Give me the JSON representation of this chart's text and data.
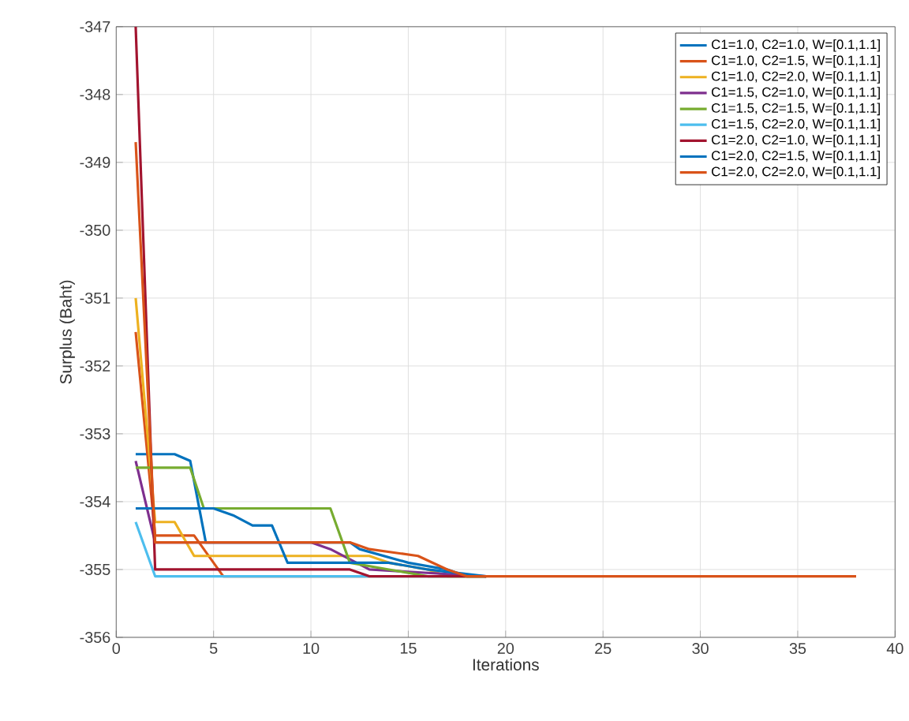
{
  "chart_data": {
    "type": "line",
    "xlabel": "Iterations",
    "ylabel": "Surplus (Baht)",
    "xlim": [
      0,
      40
    ],
    "xticks": [
      0,
      5,
      10,
      15,
      20,
      25,
      30,
      35,
      40
    ],
    "ylim": [
      -356,
      -347
    ],
    "yticks": [
      -356,
      -355,
      -354,
      -353,
      -352,
      -351,
      -350,
      -349,
      -348,
      -347
    ],
    "grid": true,
    "legend": "top right",
    "series": [
      {
        "name": "C1=1.0, C2=1.0, W=[0.1,1.1]",
        "color": "#0072bd",
        "x": [
          1,
          3,
          3.8,
          4.6,
          12,
          12.5,
          15,
          17,
          18,
          19
        ],
        "values": [
          -353.3,
          -353.3,
          -353.4,
          -354.6,
          -354.6,
          -354.7,
          -354.9,
          -355.0,
          -355.1,
          -355.1
        ]
      },
      {
        "name": "C1=1.0, C2=1.5, W=[0.1,1.1]",
        "color": "#d95319",
        "x": [
          1,
          2,
          4,
          5,
          5.5,
          19
        ],
        "values": [
          -351.5,
          -354.5,
          -354.5,
          -354.9,
          -355.1,
          -355.1
        ]
      },
      {
        "name": "C1=1.0, C2=2.0, W=[0.1,1.1]",
        "color": "#edb120",
        "x": [
          1,
          2,
          3,
          4,
          13,
          14,
          16,
          17,
          19
        ],
        "values": [
          -351.0,
          -354.3,
          -354.3,
          -354.8,
          -354.8,
          -354.9,
          -355.0,
          -355.1,
          -355.1
        ]
      },
      {
        "name": "C1=1.5, C2=1.0, W=[0.1,1.1]",
        "color": "#7e2f8e",
        "x": [
          1,
          2,
          10,
          11,
          13,
          19
        ],
        "values": [
          -353.4,
          -354.6,
          -354.6,
          -354.7,
          -355.0,
          -355.1
        ]
      },
      {
        "name": "C1=1.5, C2=1.5, W=[0.1,1.1]",
        "color": "#77ac30",
        "x": [
          1,
          3.8,
          4.5,
          11,
          12,
          14,
          16,
          19
        ],
        "values": [
          -353.5,
          -353.5,
          -354.1,
          -354.1,
          -354.9,
          -355.0,
          -355.1,
          -355.1
        ]
      },
      {
        "name": "C1=1.5, C2=2.0, W=[0.1,1.1]",
        "color": "#4dbeee",
        "x": [
          1,
          2,
          19
        ],
        "values": [
          -354.3,
          -355.1,
          -355.1
        ]
      },
      {
        "name": "C1=2.0, C2=1.0, W=[0.1,1.1]",
        "color": "#a2142f",
        "x": [
          1,
          2,
          12,
          13,
          19
        ],
        "values": [
          -347.0,
          -355.0,
          -355.0,
          -355.1,
          -355.1
        ]
      },
      {
        "name": "C1=2.0, C2=1.5, W=[0.1,1.1]",
        "color": "#0072bd",
        "x": [
          1,
          5,
          6,
          7,
          8,
          8.8,
          14,
          16,
          19
        ],
        "values": [
          -354.1,
          -354.1,
          -354.2,
          -354.35,
          -354.35,
          -354.9,
          -354.9,
          -355.0,
          -355.1
        ]
      },
      {
        "name": "C1=2.0, C2=2.0, W=[0.1,1.1]",
        "color": "#d95319",
        "x": [
          1,
          2,
          12,
          13,
          15.5,
          17,
          18,
          38
        ],
        "values": [
          -348.7,
          -354.6,
          -354.6,
          -354.7,
          -354.8,
          -355.0,
          -355.1,
          -355.1
        ]
      }
    ]
  }
}
